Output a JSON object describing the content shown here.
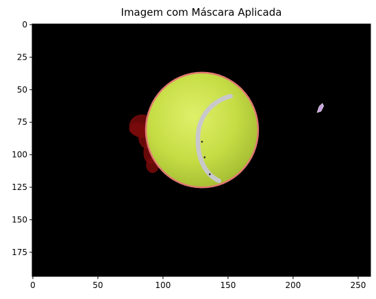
{
  "figure": {
    "title": "Imagem com Máscara Aplicada"
  },
  "image_extent": {
    "x_range": [
      -0.5,
      259.5
    ],
    "y_range": [
      -0.5,
      193.5
    ]
  },
  "axes": {
    "x_ticks": [
      0,
      50,
      100,
      150,
      200,
      250
    ],
    "y_ticks": [
      0,
      25,
      50,
      75,
      100,
      125,
      150,
      175
    ],
    "x_tick_labels": [
      "0",
      "50",
      "100",
      "150",
      "200",
      "250"
    ],
    "y_tick_labels": [
      "0",
      "25",
      "50",
      "75",
      "100",
      "125",
      "150",
      "175"
    ]
  },
  "scene": {
    "background_color": "#000000",
    "ball": {
      "center": [
        130,
        81
      ],
      "radius": [
        43,
        44
      ],
      "color": "#c9e24a"
    },
    "seam_color": "#c8c8cc",
    "outline_color": "#e37a72",
    "shadow_color": "#7a0a0a",
    "spot": {
      "center": [
        221,
        64
      ],
      "color": "#c8a0e0"
    }
  }
}
